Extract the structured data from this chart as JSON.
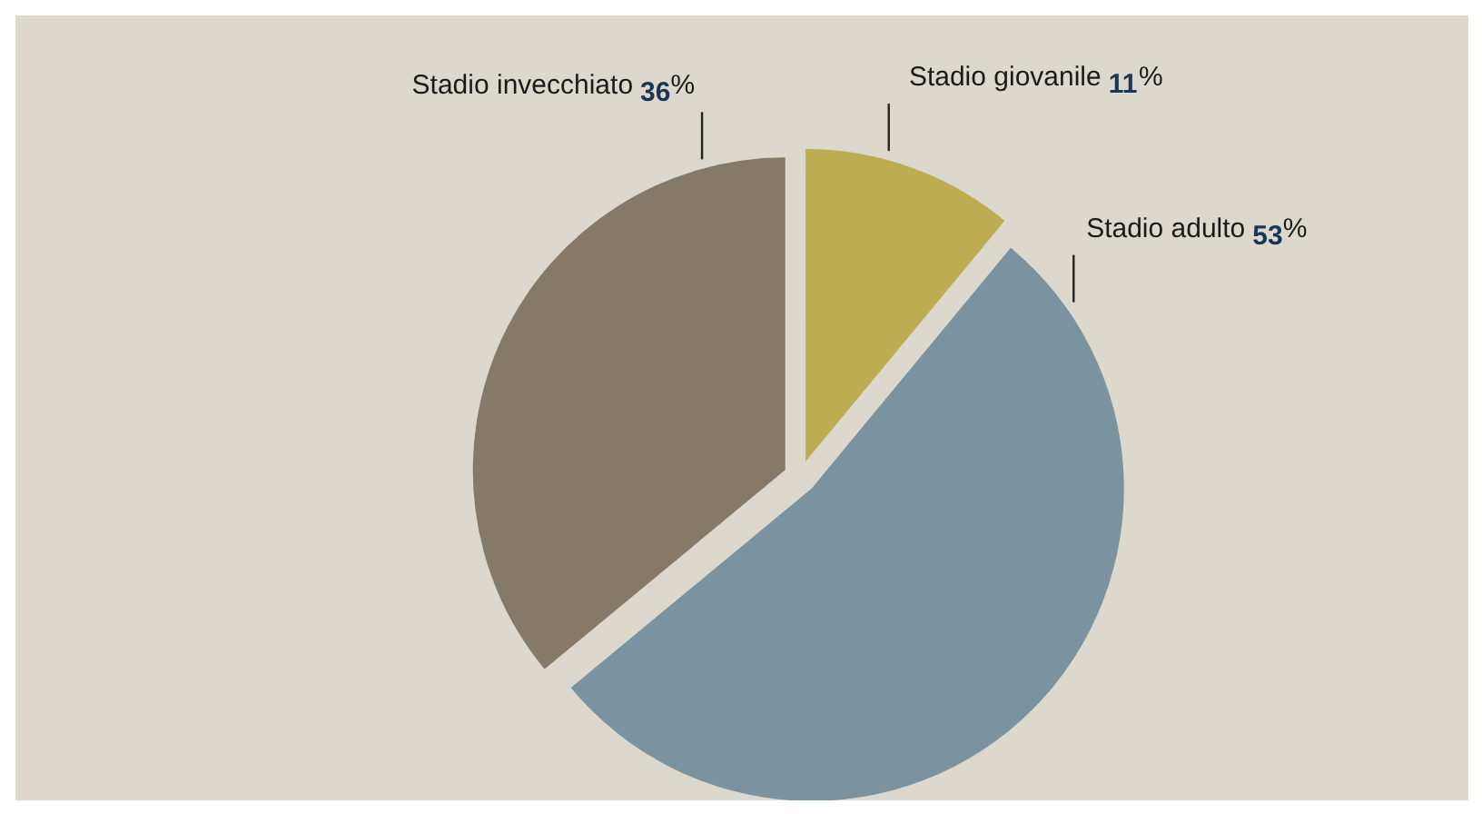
{
  "chart_data": {
    "type": "pie",
    "categories": [
      "Stadio giovanile",
      "Stadio adulto",
      "Stadio invecchiato"
    ],
    "values": [
      11,
      53,
      36
    ],
    "colors": [
      "#bdad52",
      "#7b93a1",
      "#857a67"
    ],
    "value_labels": [
      "11%",
      "53%",
      "36%"
    ]
  }
}
